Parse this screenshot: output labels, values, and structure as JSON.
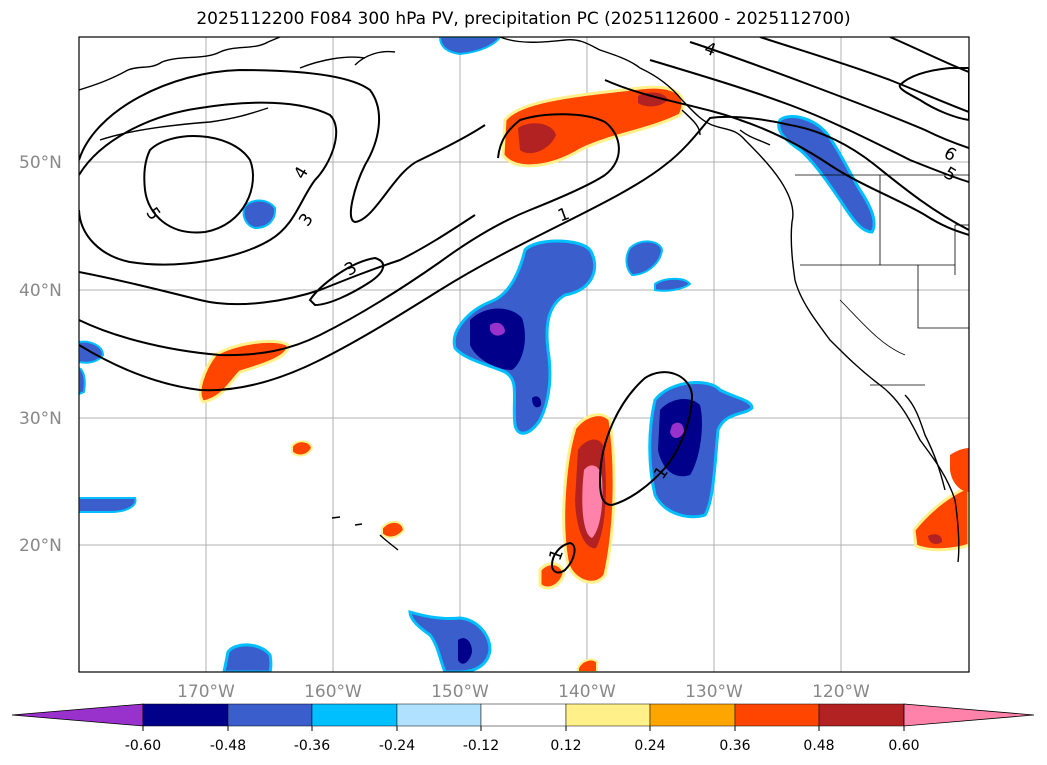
{
  "title": "2025112200 F084 300 hPa PV, precipitation PC (2025112600 - 2025112700)",
  "map": {
    "lat_ticks": [
      "50°N",
      "40°N",
      "30°N",
      "20°N"
    ],
    "lon_ticks": [
      "170°W",
      "160°W",
      "150°W",
      "140°W",
      "130°W",
      "120°W"
    ],
    "contour_labels": [
      "5",
      "4",
      "3",
      "3",
      "1",
      "1",
      "1",
      "4",
      "6",
      "5"
    ]
  },
  "colorbar": {
    "colors": [
      "#9932cc",
      "#00008b",
      "#3a5fcd",
      "#00bfff",
      "#b0e2ff",
      "#ffffff",
      "#fff08a",
      "#ffa500",
      "#ff4500",
      "#b22222",
      "#ff82ab"
    ],
    "labels": [
      "-0.60",
      "-0.48",
      "-0.36",
      "-0.24",
      "-0.12",
      "0.12",
      "0.24",
      "0.36",
      "0.48",
      "0.60"
    ]
  }
}
